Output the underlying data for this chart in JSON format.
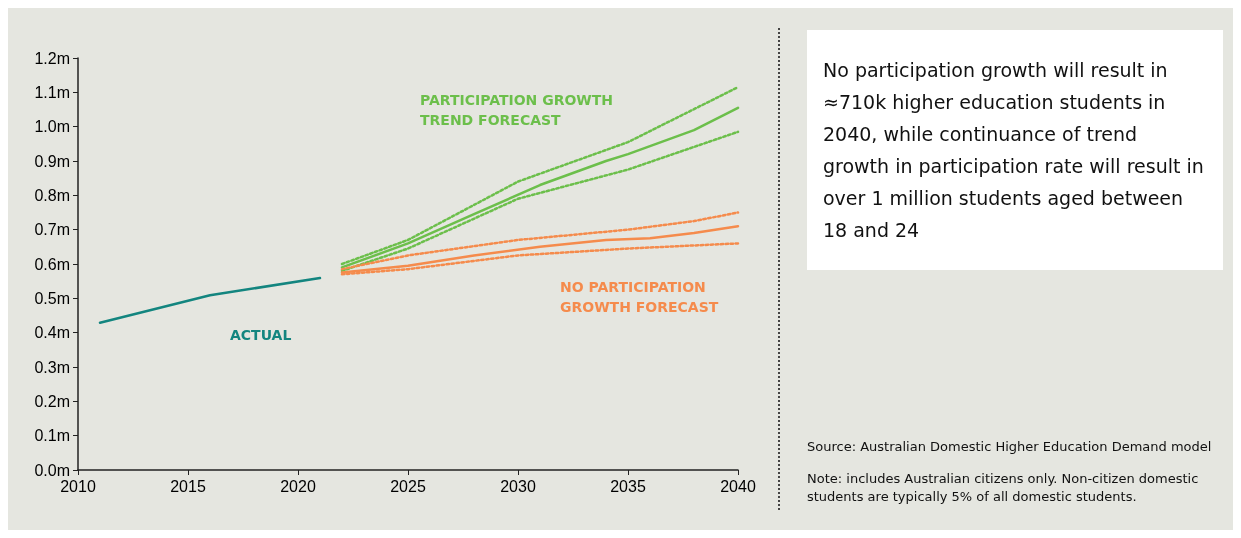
{
  "chart_data": {
    "type": "line",
    "xlim": [
      2010,
      2040
    ],
    "xticks": [
      2010,
      2015,
      2020,
      2025,
      2030,
      2035,
      2040
    ],
    "ylim": [
      0,
      1.2
    ],
    "yticks": [
      {
        "value": 0,
        "label": "0.0m"
      },
      {
        "value": 0.1,
        "label": "0.1m"
      },
      {
        "value": 0.2,
        "label": "0.2m"
      },
      {
        "value": 0.3,
        "label": "0.3m"
      },
      {
        "value": 0.4,
        "label": "0.4m"
      },
      {
        "value": 0.5,
        "label": "0.5m"
      },
      {
        "value": 0.6,
        "label": "0.6m"
      },
      {
        "value": 0.7,
        "label": "0.7m"
      },
      {
        "value": 0.8,
        "label": "0.8m"
      },
      {
        "value": 0.9,
        "label": "0.9m"
      },
      {
        "value": 1.0,
        "label": "1.0m"
      },
      {
        "value": 1.1,
        "label": "1.1m"
      },
      {
        "value": 1.2,
        "label": "1.2m"
      }
    ],
    "grid": false,
    "legend": false,
    "marker": "none",
    "series": [
      {
        "name": "ACTUAL",
        "color": "#13857f",
        "x": [
          2011,
          2016,
          2021
        ],
        "values": [
          0.429,
          0.509,
          0.559
        ],
        "line_style": "solid"
      },
      {
        "name": "PARTICIPATION GROWTH TREND FORECAST",
        "color": "#6cbf4b",
        "x": [
          2022,
          2025,
          2028,
          2031,
          2034,
          2035,
          2038,
          2040
        ],
        "values": [
          0.59,
          0.66,
          0.745,
          0.83,
          0.9,
          0.92,
          0.99,
          1.055
        ],
        "line_style": "solid"
      },
      {
        "color": "#6cbf4b",
        "x": [
          2022,
          2025,
          2030,
          2035,
          2040
        ],
        "values": [
          0.6,
          0.67,
          0.84,
          0.955,
          1.115
        ],
        "line_style": "dotted"
      },
      {
        "color": "#6cbf4b",
        "x": [
          2022,
          2025,
          2030,
          2035,
          2040
        ],
        "values": [
          0.58,
          0.645,
          0.79,
          0.875,
          0.985
        ],
        "line_style": "dotted"
      },
      {
        "name": "NO PARTICIPATION GROWTH FORECAST",
        "color": "#f58b4c",
        "x": [
          2022,
          2025,
          2028,
          2031,
          2034,
          2036,
          2038,
          2040
        ],
        "values": [
          0.575,
          0.595,
          0.625,
          0.65,
          0.67,
          0.675,
          0.69,
          0.71
        ],
        "line_style": "solid"
      },
      {
        "color": "#f58b4c",
        "x": [
          2022,
          2025,
          2030,
          2035,
          2038,
          2040
        ],
        "values": [
          0.585,
          0.625,
          0.67,
          0.7,
          0.725,
          0.75
        ],
        "line_style": "dotted"
      },
      {
        "color": "#f58b4c",
        "x": [
          2022,
          2025,
          2030,
          2035,
          2040
        ],
        "values": [
          0.57,
          0.585,
          0.625,
          0.645,
          0.66
        ],
        "line_style": "dotted"
      }
    ],
    "annotations": [
      "No participation growth will result in ≈710k higher education students in 2040, while continuance of trend growth in participation rate will result in over 1 million students aged between 18 and 24",
      "Source: Australian Domestic Higher Education Demand model",
      "Note: includes Australian citizens only. Non-citizen domestic students are typically 5% of all domestic students."
    ]
  }
}
